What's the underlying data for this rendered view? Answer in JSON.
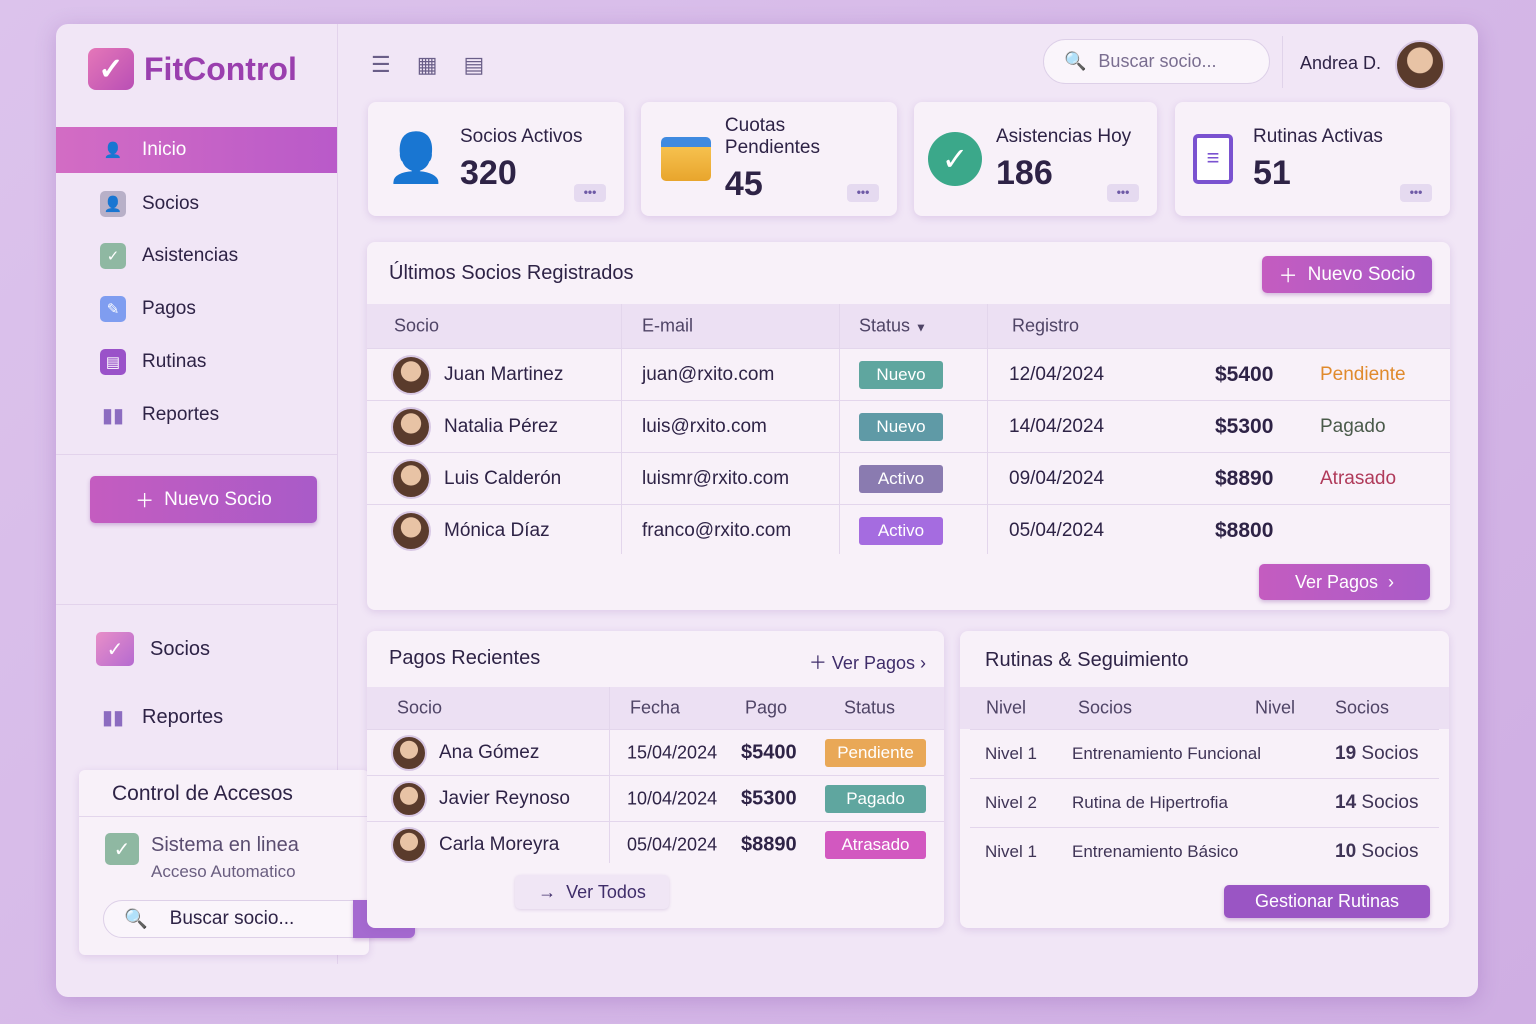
{
  "app": {
    "name": "FitControl"
  },
  "sidebar": {
    "items": [
      {
        "label": "Inicio",
        "icon": "user-plus-icon"
      },
      {
        "label": "Socios",
        "icon": "users-icon"
      },
      {
        "label": "Asistencias",
        "icon": "check-icon"
      },
      {
        "label": "Pagos",
        "icon": "payment-icon"
      },
      {
        "label": "Rutinas",
        "icon": "clipboard-icon"
      },
      {
        "label": "Reportes",
        "icon": "bar-chart-icon"
      }
    ],
    "new_button": "Nuevo Socio",
    "secondary": [
      {
        "label": "Socios"
      },
      {
        "label": "Reportes"
      }
    ],
    "access": {
      "title": "Control de Accesos",
      "status": "Sistema en linea",
      "sub": "Acceso Automatico",
      "search_placeholder": "Buscar socio..."
    }
  },
  "header": {
    "search_placeholder": "Buscar socio...",
    "user": "Andrea D."
  },
  "stats": [
    {
      "label": "Socios Activos",
      "value": "320"
    },
    {
      "label": "Cuotas Pendientes",
      "value": "45"
    },
    {
      "label": "Asistencias Hoy",
      "value": "186"
    },
    {
      "label": "Rutinas Activas",
      "value": "51"
    }
  ],
  "recent": {
    "title": "Últimos Socios Registrados",
    "new_button": "Nuevo Socio",
    "columns": [
      "Socio",
      "E-mail",
      "Status",
      "Registro"
    ],
    "rows": [
      {
        "name": "Juan Martinez",
        "email": "juan@rxito.com",
        "status": "Nuevo",
        "date": "12/04/2024",
        "amount": "$5400",
        "payment": "Pendiente"
      },
      {
        "name": "Natalia Pérez",
        "email": "luis@rxito.com",
        "status": "Nuevo",
        "date": "14/04/2024",
        "amount": "$5300",
        "payment": "Pagado"
      },
      {
        "name": "Luis Calderón",
        "email": "luismr@rxito.com",
        "status": "Activo",
        "date": "09/04/2024",
        "amount": "$8890",
        "payment": "Atrasado"
      },
      {
        "name": "Mónica Díaz",
        "email": "franco@rxito.com",
        "status": "Activo",
        "date": "05/04/2024",
        "amount": "$8800",
        "payment": ""
      }
    ],
    "view_button": "Ver Pagos"
  },
  "payments": {
    "title": "Pagos Recientes",
    "link": "Ver Pagos",
    "columns": [
      "Socio",
      "Fecha",
      "Pago",
      "Status"
    ],
    "rows": [
      {
        "name": "Ana Gómez",
        "date": "15/04/2024",
        "amount": "$5400",
        "status": "Pendiente"
      },
      {
        "name": "Javier Reynoso",
        "date": "10/04/2024",
        "amount": "$5300",
        "status": "Pagado"
      },
      {
        "name": "Carla Moreyra",
        "date": "05/04/2024",
        "amount": "$8890",
        "status": "Atrasado"
      }
    ],
    "view_all": "Ver Todos"
  },
  "routines": {
    "title": "Rutinas & Seguimiento",
    "columns": [
      "Nivel",
      "Socios",
      "Nivel",
      "Socios"
    ],
    "rows": [
      {
        "level": "Nivel 1",
        "name": "Entrenamiento Funcional",
        "count": "19",
        "unit": "Socios"
      },
      {
        "level": "Nivel 2",
        "name": "Rutina de Hipertrofia",
        "count": "14",
        "unit": "Socios"
      },
      {
        "level": "Nivel 1",
        "name": "Entrenamiento Básico",
        "count": "10",
        "unit": "Socios"
      }
    ],
    "button": "Gestionar Rutinas"
  },
  "colors": {
    "accent": "#c45cc0",
    "nuevo": "#5fa69f",
    "activo_gray": "#8a7bb0",
    "activo": "#a56ce0",
    "pendiente": "#e9a857",
    "pagado": "#5fa69f",
    "atrasado": "#d258c0"
  }
}
